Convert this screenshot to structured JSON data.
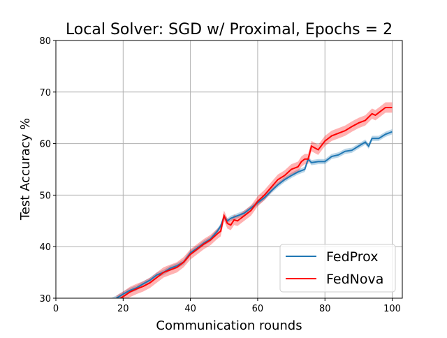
{
  "chart_data": {
    "type": "line",
    "title": "Local Solver: SGD w/ Proximal, Epochs = 2",
    "xlabel": "Communication rounds",
    "ylabel": "Test Accuracy %",
    "xlim": [
      0,
      103
    ],
    "ylim": [
      30,
      80
    ],
    "xticks": [
      0,
      20,
      40,
      60,
      80,
      100
    ],
    "yticks": [
      30,
      40,
      50,
      60,
      70,
      80
    ],
    "grid": true,
    "legend_placement": "lower-right",
    "series": [
      {
        "name": "FedProx",
        "color": "#1f77b4",
        "band_color": "#1f77b4",
        "band_halfwidth": 0.5,
        "x": [
          16,
          18,
          20,
          22,
          24,
          26,
          28,
          30,
          32,
          34,
          36,
          38,
          40,
          42,
          44,
          46,
          48,
          49,
          50,
          51,
          52,
          54,
          56,
          58,
          60,
          62,
          64,
          66,
          68,
          70,
          72,
          74,
          75,
          76,
          78,
          80,
          82,
          84,
          86,
          88,
          90,
          92,
          93,
          94,
          96,
          98,
          100
        ],
        "y": [
          29.4,
          30,
          30.8,
          31.5,
          32,
          32.8,
          33.5,
          34.5,
          35,
          35.8,
          36.3,
          37,
          38.8,
          39.7,
          40.7,
          41.5,
          43,
          44,
          45.8,
          45,
          45.5,
          46,
          46.5,
          47.5,
          48.5,
          49.5,
          50.8,
          52,
          53,
          53.8,
          54.5,
          55,
          57,
          56.3,
          56.5,
          56.5,
          57.5,
          57.8,
          58.5,
          58.7,
          59.5,
          60.3,
          59.5,
          61,
          61,
          61.8,
          62.3
        ]
      },
      {
        "name": "FedNova",
        "color": "#ff0000",
        "band_color": "#ff0000",
        "band_halfwidth": 1.0,
        "x": [
          18,
          20,
          22,
          24,
          26,
          28,
          30,
          32,
          34,
          36,
          38,
          40,
          42,
          44,
          46,
          48,
          49,
          50,
          51,
          52,
          53,
          54,
          56,
          58,
          60,
          62,
          64,
          66,
          68,
          70,
          72,
          73,
          74,
          75,
          76,
          78,
          80,
          82,
          84,
          86,
          88,
          90,
          92,
          94,
          95,
          96,
          98,
          100
        ],
        "y": [
          29.5,
          30.3,
          31.2,
          31.8,
          32.3,
          33,
          34,
          35,
          35.5,
          36,
          37,
          38.5,
          39.5,
          40.5,
          41.3,
          42.5,
          43,
          46,
          44.5,
          44.2,
          45.2,
          45,
          46,
          47,
          48.8,
          50,
          51.5,
          53,
          53.8,
          55,
          55.5,
          56.5,
          57,
          57,
          59.5,
          58.8,
          60.5,
          61.5,
          62,
          62.5,
          63.3,
          64,
          64.5,
          65.8,
          65.5,
          66,
          67,
          67
        ]
      }
    ]
  }
}
